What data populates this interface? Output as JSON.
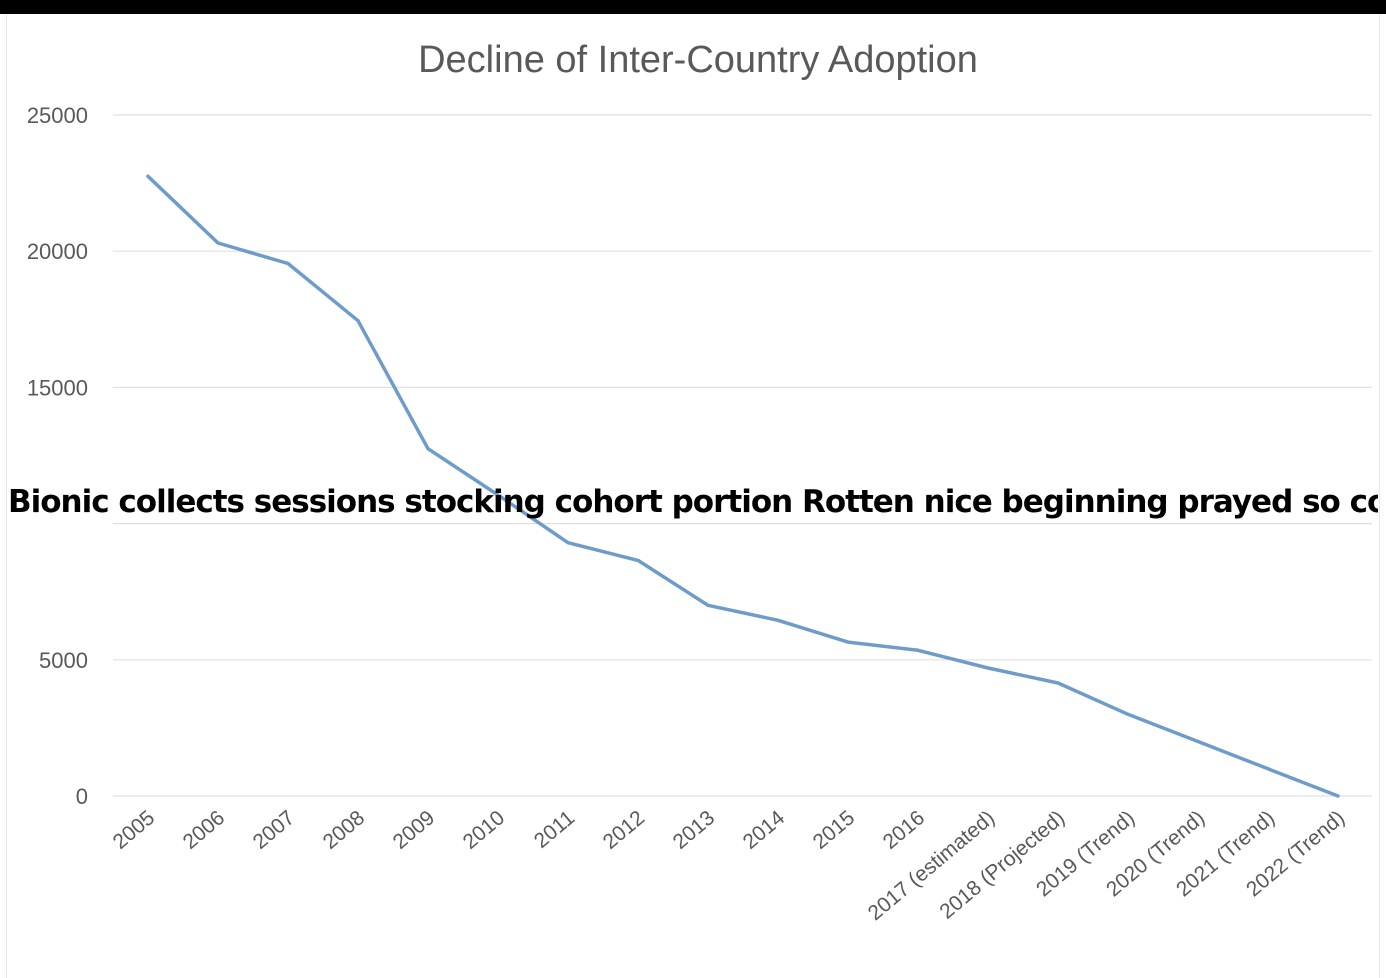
{
  "colors": {
    "line": "#6d9ccb",
    "grid": "#e0e0e0",
    "text": "#595959",
    "overlay": "#000000"
  },
  "chart_data": {
    "type": "line",
    "title": "Decline of Inter-Country Adoption",
    "xlabel": "",
    "ylabel": "",
    "categories": [
      "2005",
      "2006",
      "2007",
      "2008",
      "2009",
      "2010",
      "2011",
      "2012",
      "2013",
      "2014",
      "2015",
      "2016",
      "2017 (estimated)",
      "2018 (Projected)",
      "2019 (Trend)",
      "2020 (Trend)",
      "2021 (Trend)",
      "2022 (Trend)"
    ],
    "series": [
      {
        "values": [
          22750,
          20300,
          19550,
          17450,
          12750,
          11050,
          9300,
          8650,
          7000,
          6450,
          5650,
          5350,
          4700,
          4150,
          3000,
          2000,
          1000,
          0
        ]
      }
    ],
    "ylim": [
      0,
      25000
    ],
    "yticks": [
      0,
      5000,
      10000,
      15000,
      20000,
      25000
    ],
    "ytick_labels": [
      "0",
      "5000",
      "",
      "15000",
      "20000",
      "25000"
    ],
    "grid": true,
    "legend": "none"
  },
  "overlay": {
    "text": "Bionic collects sessions stocking cohort portion Rotten nice beginning prayed so conceding gridiron notification hall"
  }
}
